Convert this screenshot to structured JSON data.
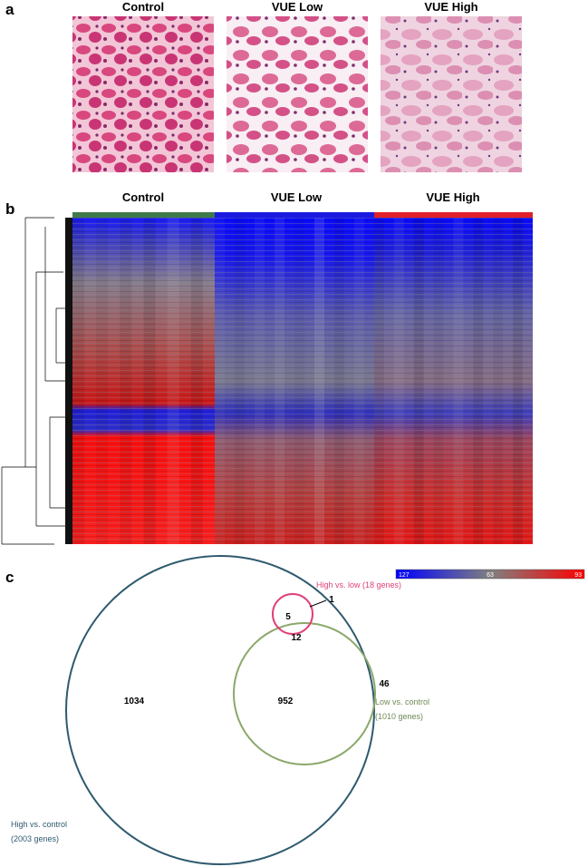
{
  "panels": {
    "a": "a",
    "b": "b",
    "c": "c"
  },
  "histology": {
    "titles": [
      "Control",
      "VUE Low",
      "VUE High"
    ]
  },
  "heatmap": {
    "groups": [
      "Control",
      "VUE Low",
      "VUE High"
    ],
    "scale_labels": [
      "127",
      "63",
      "93"
    ]
  },
  "venn": {
    "sets": [
      {
        "label_lines": [
          "High vs. low (18 genes)"
        ]
      },
      {
        "label_lines": [
          "Low vs. control",
          "(1010 genes)"
        ]
      },
      {
        "label_lines": [
          "High vs. control",
          "(2003 genes)"
        ]
      }
    ],
    "regions": [
      "1",
      "5",
      "12",
      "952",
      "46",
      "1034"
    ]
  }
}
